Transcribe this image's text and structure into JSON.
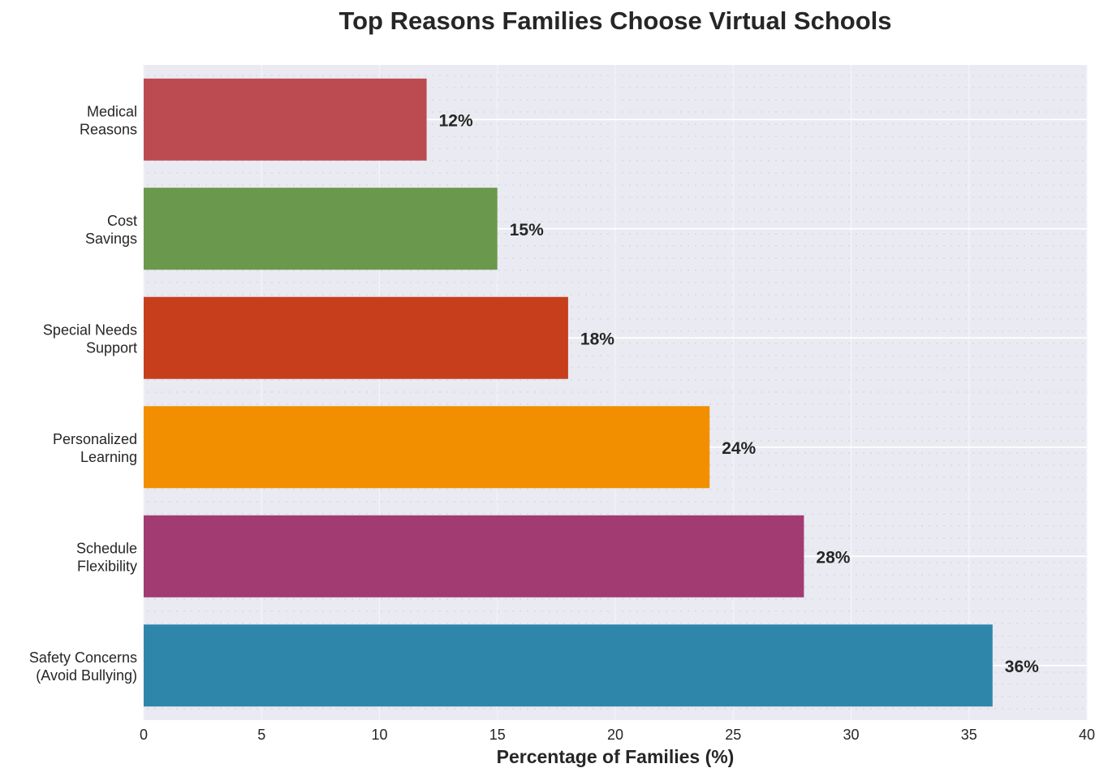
{
  "chart_data": {
    "type": "bar",
    "orientation": "horizontal",
    "title": "Top Reasons Families Choose Virtual Schools",
    "xlabel": "Percentage of Families (%)",
    "ylabel": "",
    "xlim": [
      0,
      40
    ],
    "xticks": [
      0,
      5,
      10,
      15,
      20,
      25,
      30,
      35,
      40
    ],
    "grid": true,
    "categories": [
      [
        "Safety Concerns",
        "(Avoid Bullying)"
      ],
      [
        "Schedule",
        "Flexibility"
      ],
      [
        "Personalized",
        "Learning"
      ],
      [
        "Special Needs",
        "Support"
      ],
      [
        "Cost",
        "Savings"
      ],
      [
        "Medical",
        "Reasons"
      ]
    ],
    "values": [
      36,
      28,
      24,
      18,
      15,
      12
    ],
    "data_labels": [
      "36%",
      "28%",
      "24%",
      "18%",
      "15%",
      "12%"
    ],
    "colors": [
      "#2E86AB",
      "#A23B72",
      "#F18F01",
      "#C73E1D",
      "#6A994E",
      "#BC4B51"
    ],
    "background": "#EAEAF2"
  }
}
